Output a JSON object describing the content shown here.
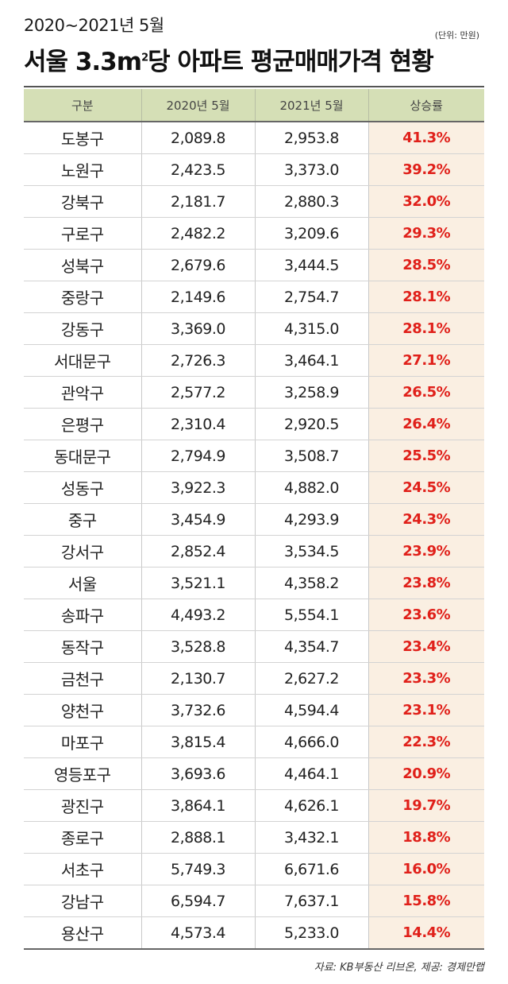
{
  "header": {
    "subtitle": "2020~2021년 5월",
    "title_main": "서울 3.3m",
    "title_sup": "2",
    "title_rest": "당 아파트 평균매매가격 현황",
    "unit": "(단위: 만원)"
  },
  "table": {
    "columns": [
      "구분",
      "2020년 5월",
      "2021년 5월",
      "상승률"
    ],
    "rows": [
      [
        "도봉구",
        "2,089.8",
        "2,953.8",
        "41.3%"
      ],
      [
        "노원구",
        "2,423.5",
        "3,373.0",
        "39.2%"
      ],
      [
        "강북구",
        "2,181.7",
        "2,880.3",
        "32.0%"
      ],
      [
        "구로구",
        "2,482.2",
        "3,209.6",
        "29.3%"
      ],
      [
        "성북구",
        "2,679.6",
        "3,444.5",
        "28.5%"
      ],
      [
        "중랑구",
        "2,149.6",
        "2,754.7",
        "28.1%"
      ],
      [
        "강동구",
        "3,369.0",
        "4,315.0",
        "28.1%"
      ],
      [
        "서대문구",
        "2,726.3",
        "3,464.1",
        "27.1%"
      ],
      [
        "관악구",
        "2,577.2",
        "3,258.9",
        "26.5%"
      ],
      [
        "은평구",
        "2,310.4",
        "2,920.5",
        "26.4%"
      ],
      [
        "동대문구",
        "2,794.9",
        "3,508.7",
        "25.5%"
      ],
      [
        "성동구",
        "3,922.3",
        "4,882.0",
        "24.5%"
      ],
      [
        "중구",
        "3,454.9",
        "4,293.9",
        "24.3%"
      ],
      [
        "강서구",
        "2,852.4",
        "3,534.5",
        "23.9%"
      ],
      [
        "서울",
        "3,521.1",
        "4,358.2",
        "23.8%"
      ],
      [
        "송파구",
        "4,493.2",
        "5,554.1",
        "23.6%"
      ],
      [
        "동작구",
        "3,528.8",
        "4,354.7",
        "23.4%"
      ],
      [
        "금천구",
        "2,130.7",
        "2,627.2",
        "23.3%"
      ],
      [
        "양천구",
        "3,732.6",
        "4,594.4",
        "23.1%"
      ],
      [
        "마포구",
        "3,815.4",
        "4,666.0",
        "22.3%"
      ],
      [
        "영등포구",
        "3,693.6",
        "4,464.1",
        "20.9%"
      ],
      [
        "광진구",
        "3,864.1",
        "4,626.1",
        "19.7%"
      ],
      [
        "종로구",
        "2,888.1",
        "3,432.1",
        "18.8%"
      ],
      [
        "서초구",
        "5,749.3",
        "6,671.6",
        "16.0%"
      ],
      [
        "강남구",
        "6,594.7",
        "7,637.1",
        "15.8%"
      ],
      [
        "용산구",
        "4,573.4",
        "5,233.0",
        "14.4%"
      ]
    ]
  },
  "source": "자료: KB부동산 리브온, 제공: 경제만랩",
  "colors": {
    "header_bg": "#d5dfb6",
    "rate_bg": "#faefe2",
    "rate_text": "#e0201a"
  }
}
